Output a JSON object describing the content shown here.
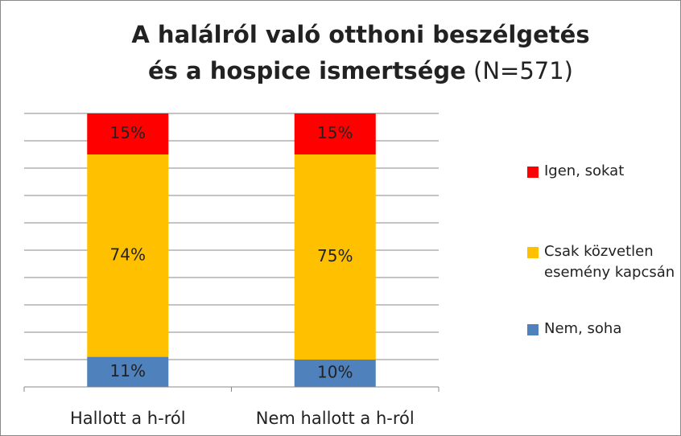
{
  "chart_data": {
    "type": "stacked_bar",
    "title_lines": [
      "A halálról való otthoni beszélgetés",
      "és a hospice ismertsége"
    ],
    "title_note": "(N=571)",
    "categories": [
      "Hallott a h-ról",
      "Nem hallott a h-ról"
    ],
    "series": [
      {
        "name": "Nem, soha",
        "color": "#4f81bd",
        "values": [
          11,
          10
        ],
        "value_labels": [
          "11%",
          "10%"
        ]
      },
      {
        "name": "Csak közvetlen esemény kapcsán",
        "color": "#ffc000",
        "values": [
          74,
          75
        ],
        "value_labels": [
          "74%",
          "75%"
        ]
      },
      {
        "name": "Igen, sokat",
        "color": "#ff0000",
        "values": [
          15,
          15
        ],
        "value_labels": [
          "15%",
          "15%"
        ]
      }
    ],
    "ylim": [
      0,
      100
    ],
    "yticks": [
      0,
      10,
      20,
      30,
      40,
      50,
      60,
      70,
      80,
      90,
      100
    ],
    "grid": true,
    "legend": "right"
  }
}
